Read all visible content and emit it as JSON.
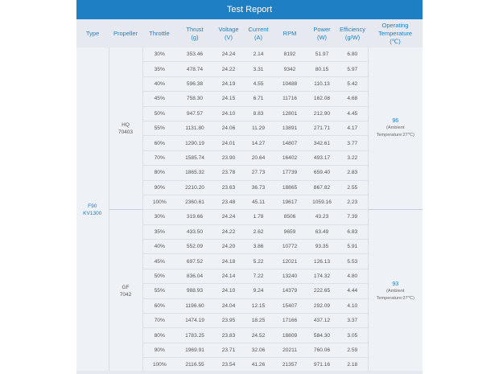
{
  "report": {
    "title": "Test Report",
    "columns": [
      {
        "key": "type",
        "label": "Type"
      },
      {
        "key": "propeller",
        "label": "Propeller"
      },
      {
        "key": "throttle",
        "label": "Throttle"
      },
      {
        "key": "thrust",
        "label": "Thrust\n(g)"
      },
      {
        "key": "voltage",
        "label": "Voltage\n(V)"
      },
      {
        "key": "current",
        "label": "Current\n(A)"
      },
      {
        "key": "rpm",
        "label": "RPM"
      },
      {
        "key": "power",
        "label": "Power\n(W)"
      },
      {
        "key": "efficiency",
        "label": "Efficiency\n(g/W)"
      },
      {
        "key": "temp",
        "label": "Operating\nTemperature\n(℃)"
      }
    ],
    "motor_type": "F90\nKV1300",
    "groups": [
      {
        "propeller": "HQ\n70403",
        "temperature": "96",
        "temperature_note": "(Ambient\nTemperature:27℃)",
        "rows": [
          [
            "30%",
            "353.46",
            "24.24",
            "2.14",
            "8192",
            "51.97",
            "6.80"
          ],
          [
            "35%",
            "478.74",
            "24.22",
            "3.31",
            "9342",
            "80.15",
            "5.97"
          ],
          [
            "40%",
            "596.38",
            "24.19",
            "4.55",
            "10488",
            "110.13",
            "5.42"
          ],
          [
            "45%",
            "758.30",
            "24.15",
            "6.71",
            "11716",
            "162.08",
            "4.68"
          ],
          [
            "50%",
            "947.57",
            "24.10",
            "8.83",
            "12801",
            "212.90",
            "4.45"
          ],
          [
            "55%",
            "1131.80",
            "24.06",
            "11.29",
            "13891",
            "271.71",
            "4.17"
          ],
          [
            "60%",
            "1290.19",
            "24.01",
            "14.27",
            "14807",
            "342.61",
            "3.77"
          ],
          [
            "70%",
            "1585.74",
            "23.90",
            "20.64",
            "16402",
            "493.17",
            "3.22"
          ],
          [
            "80%",
            "1865.32",
            "23.78",
            "27.73",
            "17739",
            "659.40",
            "2.83"
          ],
          [
            "90%",
            "2210.20",
            "23.63",
            "36.73",
            "18865",
            "867.82",
            "2.55"
          ],
          [
            "100%",
            "2360.61",
            "23.48",
            "45.11",
            "19617",
            "1059.16",
            "2.23"
          ]
        ]
      },
      {
        "propeller": "GF\n7042",
        "temperature": "93",
        "temperature_note": "(Ambient\nTemperature:27℃)",
        "rows": [
          [
            "30%",
            "319.66",
            "24.24",
            "1.78",
            "8506",
            "43.23",
            "7.39"
          ],
          [
            "35%",
            "433.50",
            "24.22",
            "2.62",
            "9659",
            "63.49",
            "6.83"
          ],
          [
            "40%",
            "552.09",
            "24.20",
            "3.86",
            "10772",
            "93.35",
            "5.91"
          ],
          [
            "45%",
            "697.52",
            "24.18",
            "5.22",
            "12021",
            "126.13",
            "5.53"
          ],
          [
            "50%",
            "836.04",
            "24.14",
            "7.22",
            "13240",
            "174.32",
            "4.80"
          ],
          [
            "55%",
            "988.93",
            "24.10",
            "9.24",
            "14379",
            "222.65",
            "4.44"
          ],
          [
            "60%",
            "1196.60",
            "24.04",
            "12.15",
            "15407",
            "292.09",
            "4.10"
          ],
          [
            "70%",
            "1474.19",
            "23.95",
            "18.25",
            "17166",
            "437.12",
            "3.37"
          ],
          [
            "80%",
            "1783.25",
            "23.83",
            "24.52",
            "18809",
            "584.30",
            "3.05"
          ],
          [
            "90%",
            "1969.91",
            "23.71",
            "32.06",
            "20211",
            "760.06",
            "2.59"
          ],
          [
            "100%",
            "2116.55",
            "23.54",
            "41.26",
            "21357",
            "971.16",
            "2.18"
          ]
        ]
      }
    ],
    "colors": {
      "header_bg": "#1f7fc4",
      "accent_text": "#1f7fc4",
      "table_bg": "#eef1f5"
    }
  }
}
